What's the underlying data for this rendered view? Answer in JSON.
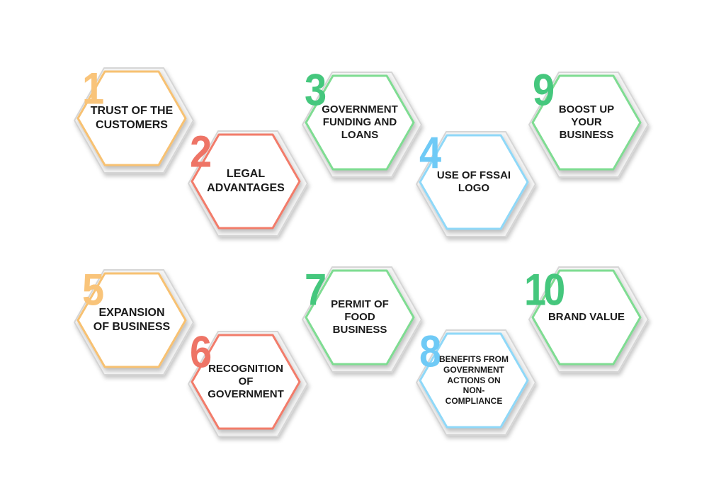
{
  "colors": {
    "orange": "#f7c172",
    "red": "#f27b6b",
    "green": "#7fdc92",
    "blue": "#8fd8f8",
    "number_orange": "#f9c47a",
    "number_red": "#ee7466",
    "number_green": "#45c77d",
    "number_blue": "#6fcaf6"
  },
  "items": [
    {
      "number": "1",
      "label": "TRUST OF THE CUSTOMERS",
      "color": "orange"
    },
    {
      "number": "2",
      "label": "LEGAL ADVANTAGES",
      "color": "red"
    },
    {
      "number": "3",
      "label": "GOVERNMENT FUNDING AND LOANS",
      "color": "green"
    },
    {
      "number": "4",
      "label": "USE OF FSSAI LOGO",
      "color": "blue"
    },
    {
      "number": "9",
      "label": "BOOST UP YOUR BUSINESS",
      "color": "green"
    },
    {
      "number": "5",
      "label": "EXPANSION OF BUSINESS",
      "color": "orange"
    },
    {
      "number": "6",
      "label": "RECOGNITION OF GOVERNMENT",
      "color": "red"
    },
    {
      "number": "7",
      "label": "PERMIT OF FOOD BUSINESS",
      "color": "green"
    },
    {
      "number": "8",
      "label": "BENEFITS FROM GOVERNMENT ACTIONS ON NON-COMPLIANCE",
      "color": "blue"
    },
    {
      "number": "10",
      "label": "BRAND VALUE",
      "color": "green"
    }
  ]
}
